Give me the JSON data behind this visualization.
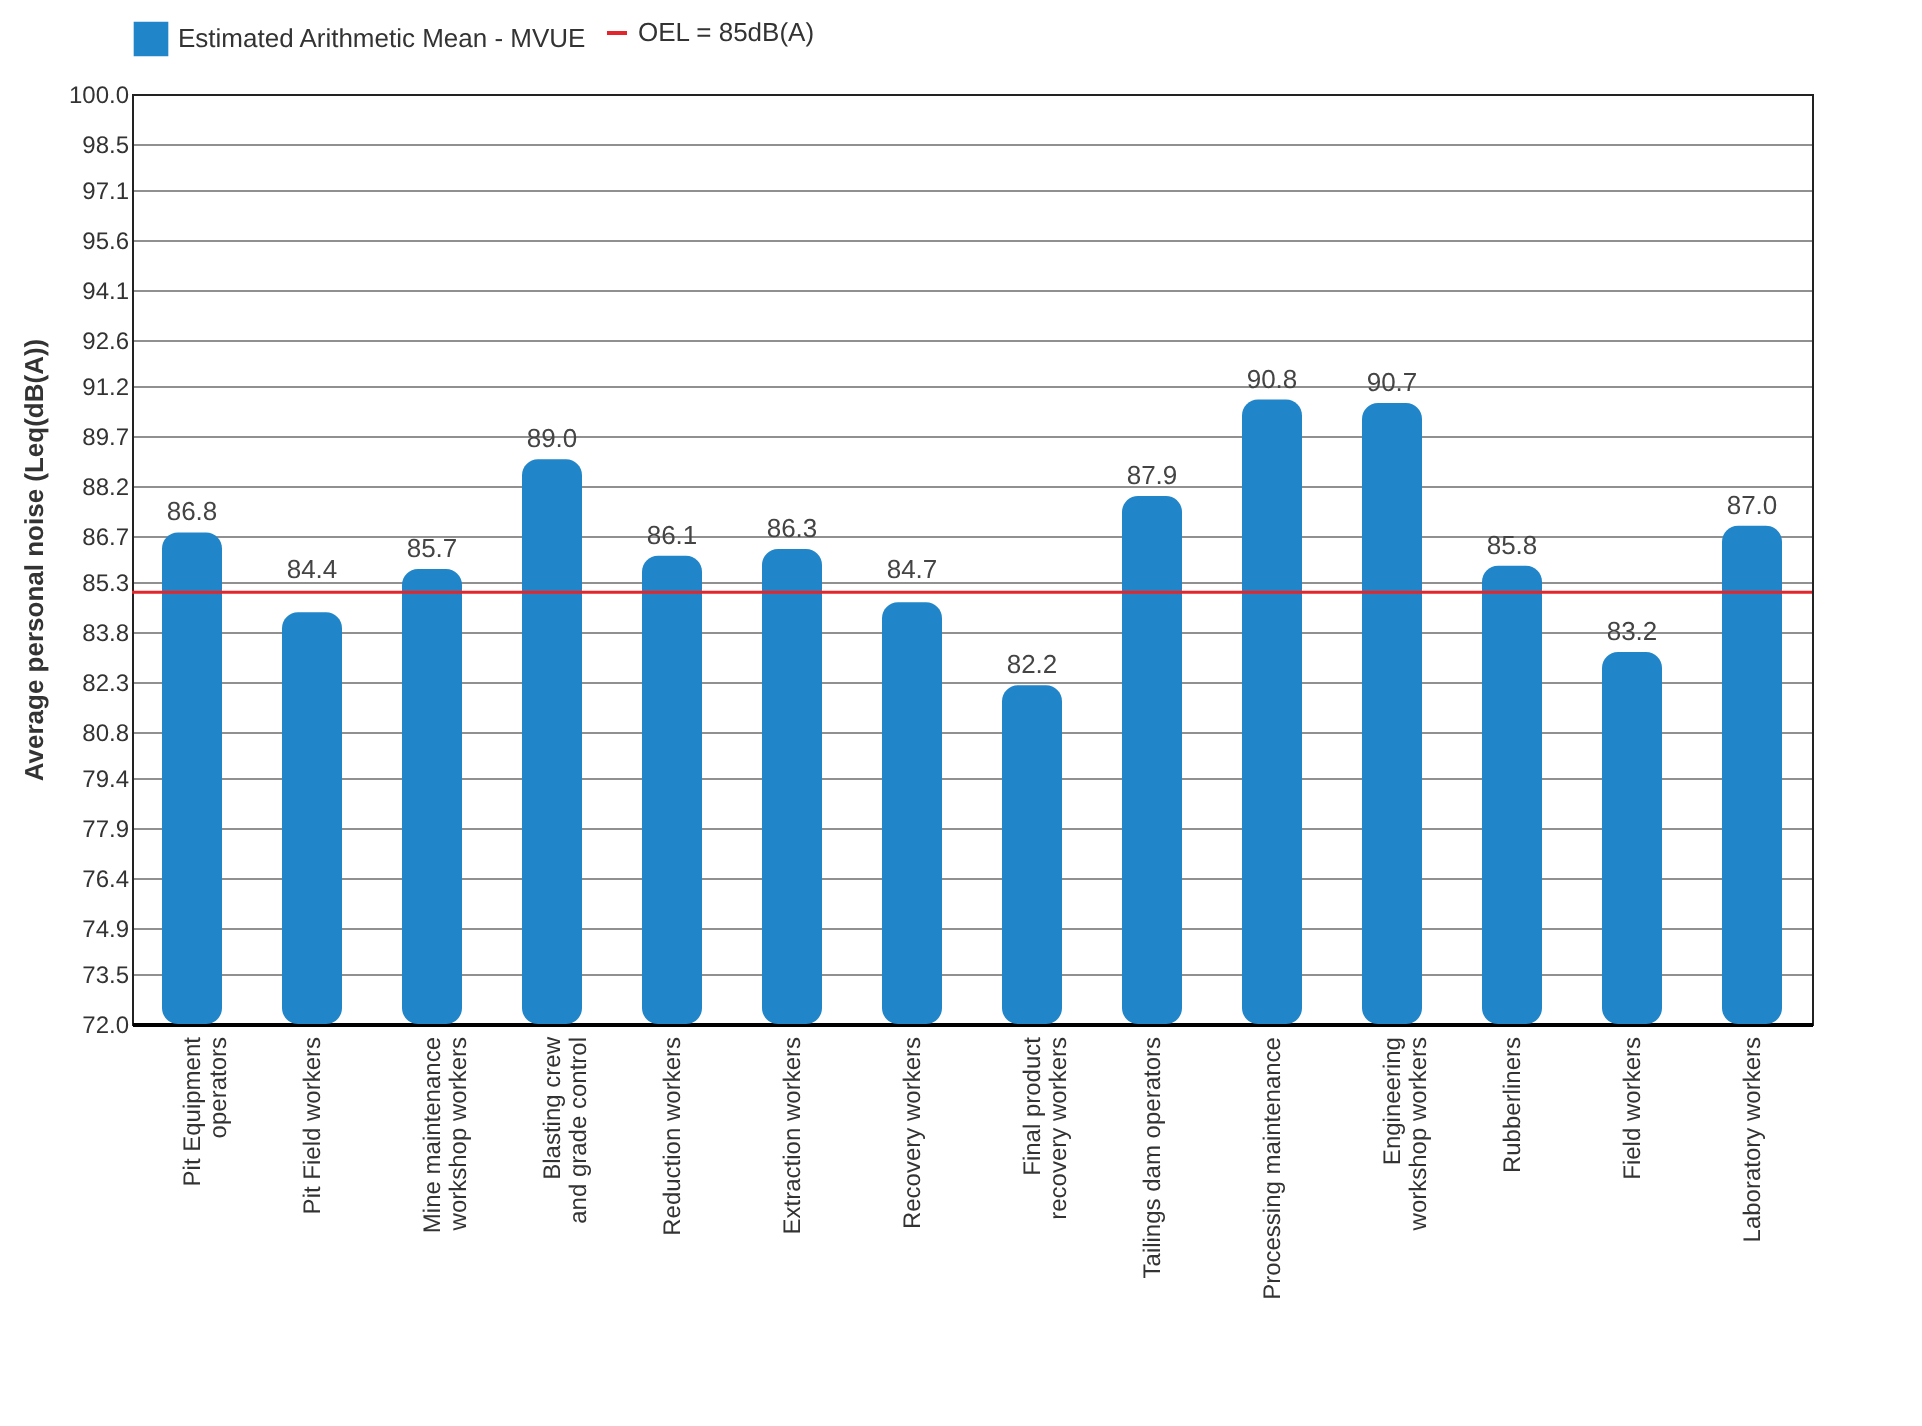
{
  "chart_data": {
    "type": "bar",
    "ylabel": "Average personal noise (Leq(dB(A))",
    "categories": [
      "Pit Equipment\noperators",
      "Pit Field workers",
      "Mine maintenance\nworkshop workers",
      "Blasting crew\nand grade control",
      "Reduction workers",
      "Extraction workers",
      "Recovery workers",
      "Final product\nrecovery workers",
      "Tailings dam operators",
      "Processing maintenance",
      "Engineering\nworkshop workers",
      "Rubberliners",
      "Field workers",
      "Laboratory workers"
    ],
    "series": [
      {
        "name": "Estimated Arithmetic Mean - MVUE",
        "color": "#2185c9",
        "values": [
          86.8,
          84.4,
          85.7,
          89.0,
          86.1,
          86.3,
          84.7,
          82.2,
          87.9,
          90.8,
          90.7,
          85.8,
          83.2,
          87.0
        ],
        "value_labels": [
          "86.8",
          "84.4",
          "85.7",
          "89.0",
          "86.1",
          "86.3",
          "84.7",
          "82.2",
          "87.9",
          "90.8",
          "90.7",
          "85.8",
          "83.2",
          "87.0"
        ]
      }
    ],
    "ylim": [
      72,
      100
    ],
    "yticks": [
      {
        "value": 72,
        "label": "72.0"
      },
      {
        "value": 73.5,
        "label": "73.5"
      },
      {
        "value": 74.9,
        "label": "74.9"
      },
      {
        "value": 76.4,
        "label": "76.4"
      },
      {
        "value": 77.9,
        "label": "77.9"
      },
      {
        "value": 79.4,
        "label": "79.4"
      },
      {
        "value": 80.8,
        "label": "80.8"
      },
      {
        "value": 82.3,
        "label": "82.3"
      },
      {
        "value": 83.8,
        "label": "83.8"
      },
      {
        "value": 85.3,
        "label": "85.3"
      },
      {
        "value": 86.7,
        "label": "86.7"
      },
      {
        "value": 88.2,
        "label": "88.2"
      },
      {
        "value": 89.7,
        "label": "89.7"
      },
      {
        "value": 91.2,
        "label": "91.2"
      },
      {
        "value": 92.6,
        "label": "92.6"
      },
      {
        "value": 94.1,
        "label": "94.1"
      },
      {
        "value": 95.6,
        "label": "95.6"
      },
      {
        "value": 97.1,
        "label": "97.1"
      },
      {
        "value": 98.5,
        "label": "98.5"
      },
      {
        "value": 100,
        "label": "100.0"
      }
    ],
    "ref_lines": [
      {
        "axis": "y",
        "value": 85,
        "label": "OEL = 85dB(A)",
        "color": "#e3262b"
      }
    ],
    "grid": "y",
    "legend": "top"
  }
}
